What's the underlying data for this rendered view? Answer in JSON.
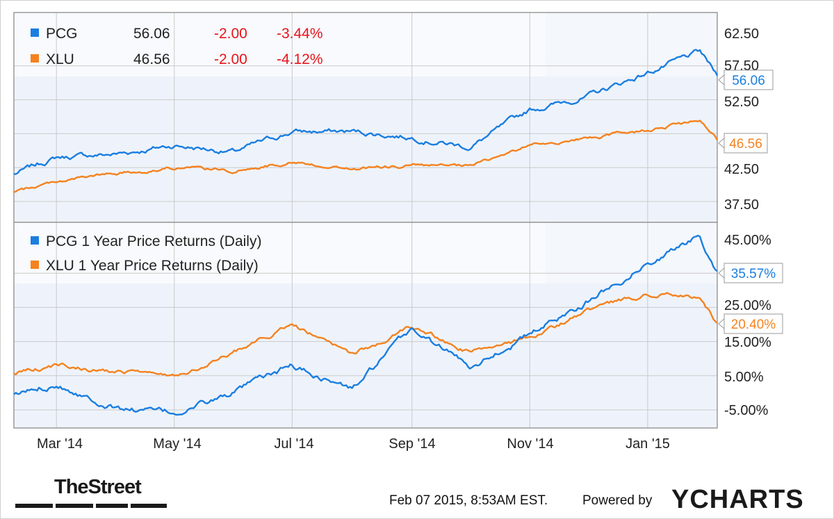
{
  "colors": {
    "pcg": "#1a7ee0",
    "xlu": "#f5821f",
    "negative": "#e8141b"
  },
  "price_panel": {
    "legend": [
      {
        "name": "PCG",
        "value": "56.06",
        "change": "-2.00",
        "pct": "-3.44%",
        "color": "#1a7ee0"
      },
      {
        "name": "XLU",
        "value": "46.56",
        "change": "-2.00",
        "pct": "-4.12%",
        "color": "#f5821f"
      }
    ],
    "y_ticks": [
      "62.50",
      "57.50",
      "52.50",
      "42.50",
      "37.50"
    ],
    "end_labels": {
      "pcg": "56.06",
      "xlu": "46.56"
    }
  },
  "return_panel": {
    "legend": [
      {
        "name": "PCG 1 Year Price Returns (Daily)",
        "color": "#1a7ee0"
      },
      {
        "name": "XLU 1 Year Price Returns (Daily)",
        "color": "#f5821f"
      }
    ],
    "y_ticks": [
      "45.00%",
      "25.00%",
      "15.00%",
      "5.00%",
      "-5.00%"
    ],
    "end_labels": {
      "pcg": "35.57%",
      "xlu": "20.40%"
    }
  },
  "x_ticks": [
    "Mar '14",
    "May '14",
    "Jul '14",
    "Sep '14",
    "Nov '14",
    "Jan '15"
  ],
  "footer": {
    "timestamp": "Feb 07 2015, 8:53AM EST.",
    "powered_by": "Powered by",
    "ycharts_logo": "YCHARTS",
    "thestreet_logo": "TheStreet"
  },
  "chart_data": [
    {
      "type": "line",
      "x": [
        "2014-02-07",
        "2014-03-01",
        "2014-04-01",
        "2014-05-01",
        "2014-06-01",
        "2014-07-01",
        "2014-08-01",
        "2014-09-01",
        "2014-10-01",
        "2014-11-01",
        "2014-12-01",
        "2015-01-01",
        "2015-01-28",
        "2015-02-06"
      ],
      "series": [
        {
          "name": "PCG",
          "values": [
            41.5,
            44.0,
            44.5,
            45.8,
            44.8,
            47.8,
            47.8,
            47.0,
            45.5,
            51.0,
            53.0,
            56.5,
            59.5,
            56.06
          ]
        },
        {
          "name": "XLU",
          "values": [
            38.8,
            40.5,
            41.6,
            42.5,
            42.0,
            43.4,
            42.3,
            42.8,
            42.6,
            45.8,
            46.8,
            48.1,
            49.3,
            46.56
          ]
        }
      ],
      "ylim": [
        35,
        65
      ]
    },
    {
      "type": "line",
      "x": [
        "2014-02-07",
        "2014-03-01",
        "2014-04-01",
        "2014-05-01",
        "2014-06-01",
        "2014-07-01",
        "2014-08-01",
        "2014-09-01",
        "2014-10-01",
        "2014-11-01",
        "2014-12-01",
        "2015-01-01",
        "2015-01-28",
        "2015-02-06"
      ],
      "series": [
        {
          "name": "PCG 1 Year Price Returns (Daily)",
          "values": [
            -1.0,
            3.0,
            -4.5,
            -6.0,
            0.0,
            8.0,
            1.0,
            18.5,
            8.0,
            17.0,
            27.0,
            38.0,
            46.0,
            35.57
          ]
        },
        {
          "name": "XLU 1 Year Price Returns (Daily)",
          "values": [
            6.0,
            8.0,
            6.0,
            5.0,
            12.0,
            20.0,
            11.0,
            19.0,
            12.0,
            16.0,
            24.0,
            29.0,
            28.0,
            20.4
          ]
        }
      ],
      "ylim": [
        -10,
        50
      ]
    }
  ]
}
